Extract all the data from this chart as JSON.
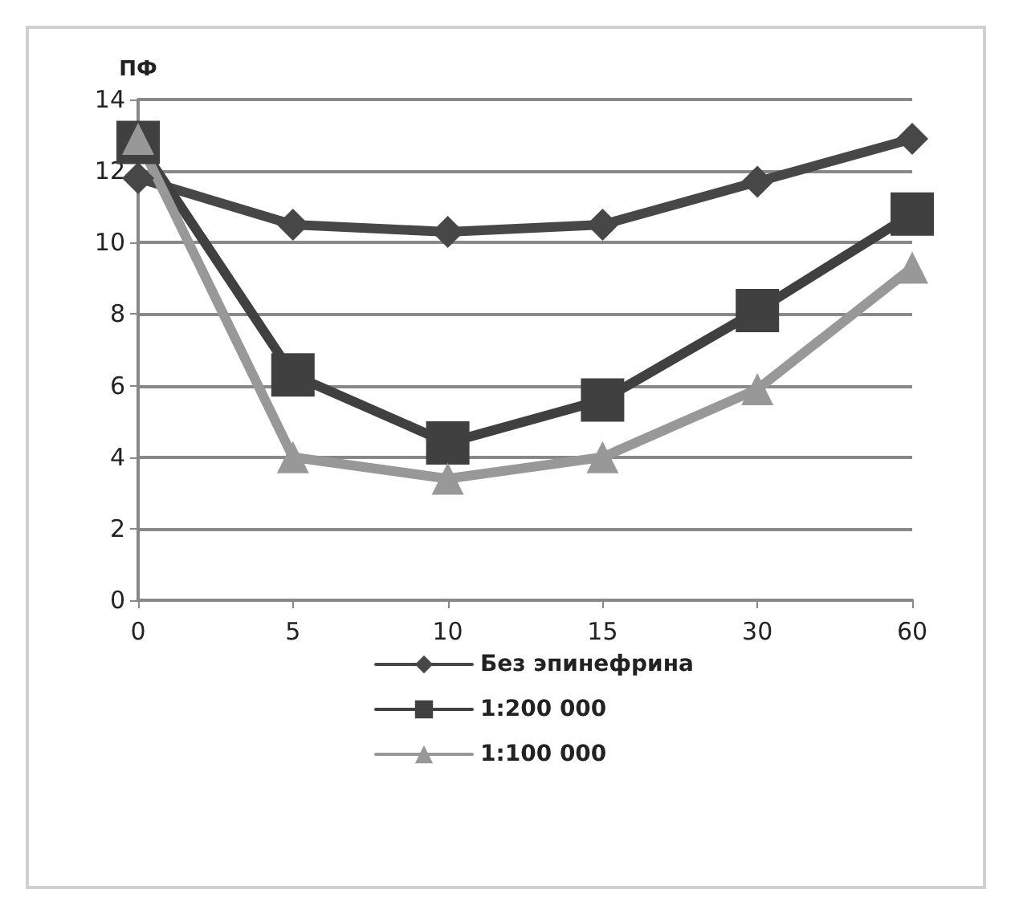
{
  "chart_data": {
    "type": "line",
    "ylabel": "ПФ",
    "categories": [
      "0",
      "5",
      "10",
      "15",
      "30",
      "60"
    ],
    "series": [
      {
        "name": "Без эпинефрина",
        "color": "#474747",
        "marker": "diamond",
        "values": [
          11.8,
          10.5,
          10.3,
          10.5,
          11.7,
          12.9
        ]
      },
      {
        "name": "1:200 000",
        "color": "#404040",
        "marker": "square",
        "values": [
          12.8,
          6.3,
          4.4,
          5.6,
          8.1,
          10.8
        ]
      },
      {
        "name": "1:100 000",
        "color": "#989898",
        "marker": "triangle",
        "values": [
          12.9,
          4.0,
          3.4,
          4.0,
          5.9,
          9.3
        ]
      }
    ],
    "ylim": [
      0,
      14
    ],
    "yticks": [
      0,
      2,
      4,
      6,
      8,
      10,
      12,
      14
    ],
    "grid": "y",
    "legend": "bottom"
  }
}
